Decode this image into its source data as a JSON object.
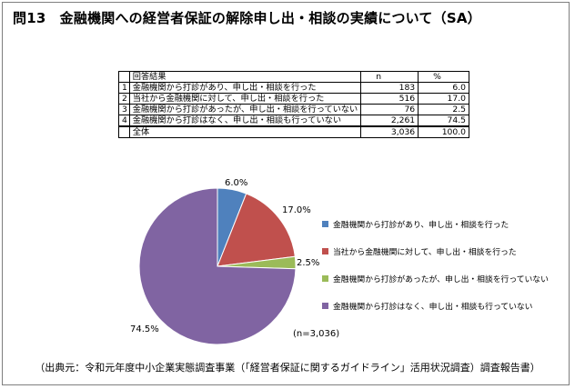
{
  "title": "問13　金融機関への経営者保証の解除申し出・相談の実績について（SA）",
  "table": {
    "header": {
      "label": "回答結果",
      "n": "n",
      "pct": "%"
    },
    "rows": [
      {
        "index": "1",
        "label": "金融機関から打診があり、申し出・相談を行った",
        "n": "183",
        "pct": "6.0"
      },
      {
        "index": "2",
        "label": "当社から金融機関に対して、申し出・相談を行った",
        "n": "516",
        "pct": "17.0"
      },
      {
        "index": "3",
        "label": "金融機関から打診があったが、申し出・相談を行っていない",
        "n": "76",
        "pct": "2.5"
      },
      {
        "index": "4",
        "label": "金融機関から打診はなく、申し出・相談も行っていない",
        "n": "2,261",
        "pct": "74.5"
      }
    ],
    "total": {
      "label": "全体",
      "n": "3,036",
      "pct": "100.0"
    }
  },
  "chart_data": {
    "type": "pie",
    "categories": [
      "金融機関から打診があり、申し出・相談を行った",
      "当社から金融機関に対して、申し出・相談を行った",
      "金融機関から打診があったが、申し出・相談を行っていない",
      "金融機関から打診はなく、申し出・相談も行っていない"
    ],
    "values": [
      6.0,
      17.0,
      2.5,
      74.5
    ],
    "value_labels": [
      "6.0%",
      "17.0%",
      "2.5%",
      "74.5%"
    ],
    "colors": [
      "#4f81bd",
      "#c0504d",
      "#9bbb59",
      "#8064a2"
    ],
    "legend_position": "right",
    "annotation": "(n=3,036)"
  },
  "source": "（出典元：令和元年度中小企業実態調査事業（「経営者保証に関するガイドライン」活用状況調査）調査報告書）"
}
